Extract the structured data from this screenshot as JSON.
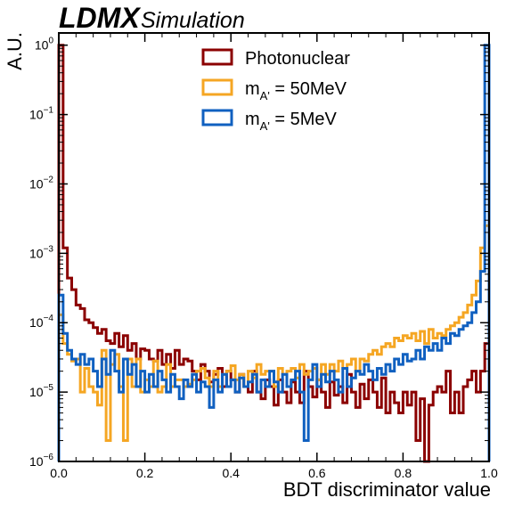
{
  "header": {
    "brand": "LDMX",
    "subtitle": "Simulation"
  },
  "chart_data": {
    "type": "histogram",
    "title": "",
    "xlabel": "BDT discriminator value",
    "ylabel": "A.U.",
    "xlim": [
      0,
      1
    ],
    "ylim": [
      1e-06,
      1.5
    ],
    "yscale": "log",
    "xticks": [
      0,
      0.2,
      0.4,
      0.6,
      0.8,
      1
    ],
    "xtick_labels": [
      "0.0",
      "0.2",
      "0.4",
      "0.6",
      "0.8",
      "1.0"
    ],
    "yticks": [
      1e-06,
      1e-05,
      0.0001,
      0.001,
      0.01,
      0.1,
      1
    ],
    "ytick_labels": [
      {
        "base": "10",
        "exp": "−6"
      },
      {
        "base": "10",
        "exp": "−5"
      },
      {
        "base": "10",
        "exp": "−4"
      },
      {
        "base": "10",
        "exp": "−3"
      },
      {
        "base": "10",
        "exp": "−2"
      },
      {
        "base": "10",
        "exp": "−1"
      },
      {
        "base": "10",
        "exp": "0"
      }
    ],
    "grid": false,
    "legend": "top-center",
    "bins": 100,
    "series": [
      {
        "name": "Photonuclear",
        "legend_base": "Photonuclear",
        "legend_sub": "",
        "legend_rest": "",
        "color": "#8b0000",
        "values": [
          1.0,
          0.0012,
          0.00044,
          0.0003,
          0.00018,
          0.00016,
          0.00011,
          0.0001,
          8.5e-05,
          7e-05,
          8e-05,
          5.5e-05,
          5e-05,
          7e-05,
          4.5e-05,
          6.5e-05,
          4e-05,
          5e-05,
          3e-05,
          4.2e-05,
          4e-05,
          3e-05,
          2.8e-05,
          4e-05,
          2.5e-05,
          3.5e-05,
          2.2e-05,
          4e-05,
          2.5e-05,
          3e-05,
          2.8e-05,
          2e-05,
          1.5e-05,
          2.5e-05,
          2e-05,
          1.4e-05,
          1.8e-05,
          2.2e-05,
          1.2e-05,
          2e-05,
          1.5e-05,
          1e-05,
          1.8e-05,
          1.2e-05,
          1e-05,
          2e-05,
          1e-05,
          8e-06,
          1.5e-05,
          1.2e-05,
          6.5e-06,
          1.5e-05,
          1e-05,
          7e-06,
          1.4e-05,
          1e-05,
          7e-06,
          2e-05,
          1.2e-05,
          8.5e-06,
          1.5e-05,
          1e-05,
          6e-06,
          1.4e-05,
          9e-06,
          1.2e-05,
          7e-06,
          1.8e-05,
          1e-05,
          6e-06,
          1.3e-05,
          8e-06,
          1.5e-05,
          1e-05,
          6e-06,
          1.6e-05,
          5e-06,
          1e-05,
          7e-06,
          5e-06,
          1e-05,
          6.5e-06,
          1e-05,
          2e-06,
          8e-06,
          1e-06,
          6.5e-06,
          1e-05,
          1.2e-05,
          1e-05,
          2e-05,
          5e-06,
          1e-05,
          5e-06,
          1.2e-05,
          1.5e-05,
          2e-05,
          1e-05,
          2e-05,
          5e-05
        ]
      },
      {
        "name": "m_A' = 50MeV",
        "legend_base": "m",
        "legend_sub": "A'",
        "legend_rest": " = 50MeV",
        "color": "#f5a623",
        "values": [
          0.00013,
          5e-05,
          3.5e-05,
          2.8e-05,
          3e-05,
          1e-05,
          2.2e-05,
          1.2e-05,
          1e-05,
          6.5e-06,
          4e-05,
          2e-06,
          2.5e-05,
          3.5e-05,
          1.2e-05,
          2e-06,
          3e-05,
          1.2e-05,
          3e-05,
          1e-05,
          1.5e-05,
          1.2e-05,
          2.8e-05,
          1e-05,
          1.2e-05,
          2.5e-05,
          1.2e-05,
          1.5e-05,
          1.5e-05,
          1.2e-05,
          1.3e-05,
          1.5e-05,
          2e-05,
          2.2e-05,
          1.6e-05,
          1.2e-05,
          2e-05,
          1.2e-05,
          1.8e-05,
          2e-05,
          2.4e-05,
          1.5e-05,
          1.8e-05,
          1.2e-05,
          2e-05,
          1.6e-05,
          2.5e-05,
          1.8e-05,
          2e-05,
          2e-05,
          1.2e-05,
          2.2e-05,
          1.8e-05,
          2e-05,
          2.2e-05,
          1.6e-05,
          2.5e-05,
          1.8e-05,
          2e-05,
          2.2e-05,
          1.5e-05,
          2.5e-05,
          1.8e-05,
          2.5e-05,
          2e-05,
          2.8e-05,
          2.2e-05,
          2.5e-05,
          3e-05,
          2e-05,
          3e-05,
          2.8e-05,
          3.5e-05,
          4e-05,
          3.5e-05,
          4.5e-05,
          5e-05,
          4.5e-05,
          6e-05,
          5.5e-05,
          6.5e-05,
          6e-05,
          7e-05,
          5.5e-05,
          7.5e-05,
          5e-05,
          8e-05,
          6e-05,
          7e-05,
          6.5e-05,
          8e-05,
          9e-05,
          0.0001,
          0.00012,
          0.00014,
          0.00018,
          0.00025,
          0.0004,
          0.0012,
          0.0025
        ]
      },
      {
        "name": "m_A' = 5MeV",
        "legend_base": "m",
        "legend_sub": "A'",
        "legend_rest": " = 5MeV",
        "color": "#1060c0",
        "values": [
          0.00025,
          7e-05,
          4e-05,
          3e-05,
          2.5e-05,
          3.5e-05,
          2.5e-05,
          3e-05,
          2e-05,
          1.2e-05,
          3e-05,
          1.8e-05,
          4e-05,
          2e-05,
          1e-05,
          3e-05,
          1.8e-05,
          2.5e-05,
          1.2e-05,
          2e-05,
          1e-05,
          1.8e-05,
          1.2e-05,
          2e-05,
          1.5e-05,
          1e-05,
          1.8e-05,
          1.2e-05,
          8e-06,
          1.5e-05,
          1.2e-05,
          1.8e-05,
          1e-05,
          1.4e-05,
          1.2e-05,
          6e-06,
          1.5e-05,
          1e-05,
          1.8e-05,
          1.2e-05,
          1.5e-05,
          1e-05,
          1.6e-05,
          1.2e-05,
          1.4e-05,
          1.8e-05,
          1e-05,
          1.5e-05,
          1.2e-05,
          2e-05,
          1.4e-05,
          1e-05,
          1.8e-05,
          1.2e-05,
          1.5e-05,
          2e-05,
          1e-05,
          2e-06,
          1.5e-05,
          2.5e-05,
          1.2e-05,
          1.8e-05,
          1.4e-05,
          2e-05,
          1.5e-05,
          1e-05,
          2.2e-05,
          1.2e-05,
          1.6e-05,
          2e-05,
          1.8e-05,
          2.5e-05,
          2e-05,
          1.5e-05,
          2.2e-05,
          1.8e-05,
          2.5e-05,
          2e-05,
          3e-05,
          2.5e-05,
          3.5e-05,
          2.8e-05,
          3e-05,
          4e-05,
          3e-05,
          4.5e-05,
          4e-05,
          5e-05,
          4e-05,
          6e-05,
          5e-05,
          7e-05,
          6.5e-05,
          8e-05,
          9e-05,
          0.0001,
          0.00014,
          0.0002,
          0.00055,
          1.0
        ]
      }
    ]
  }
}
